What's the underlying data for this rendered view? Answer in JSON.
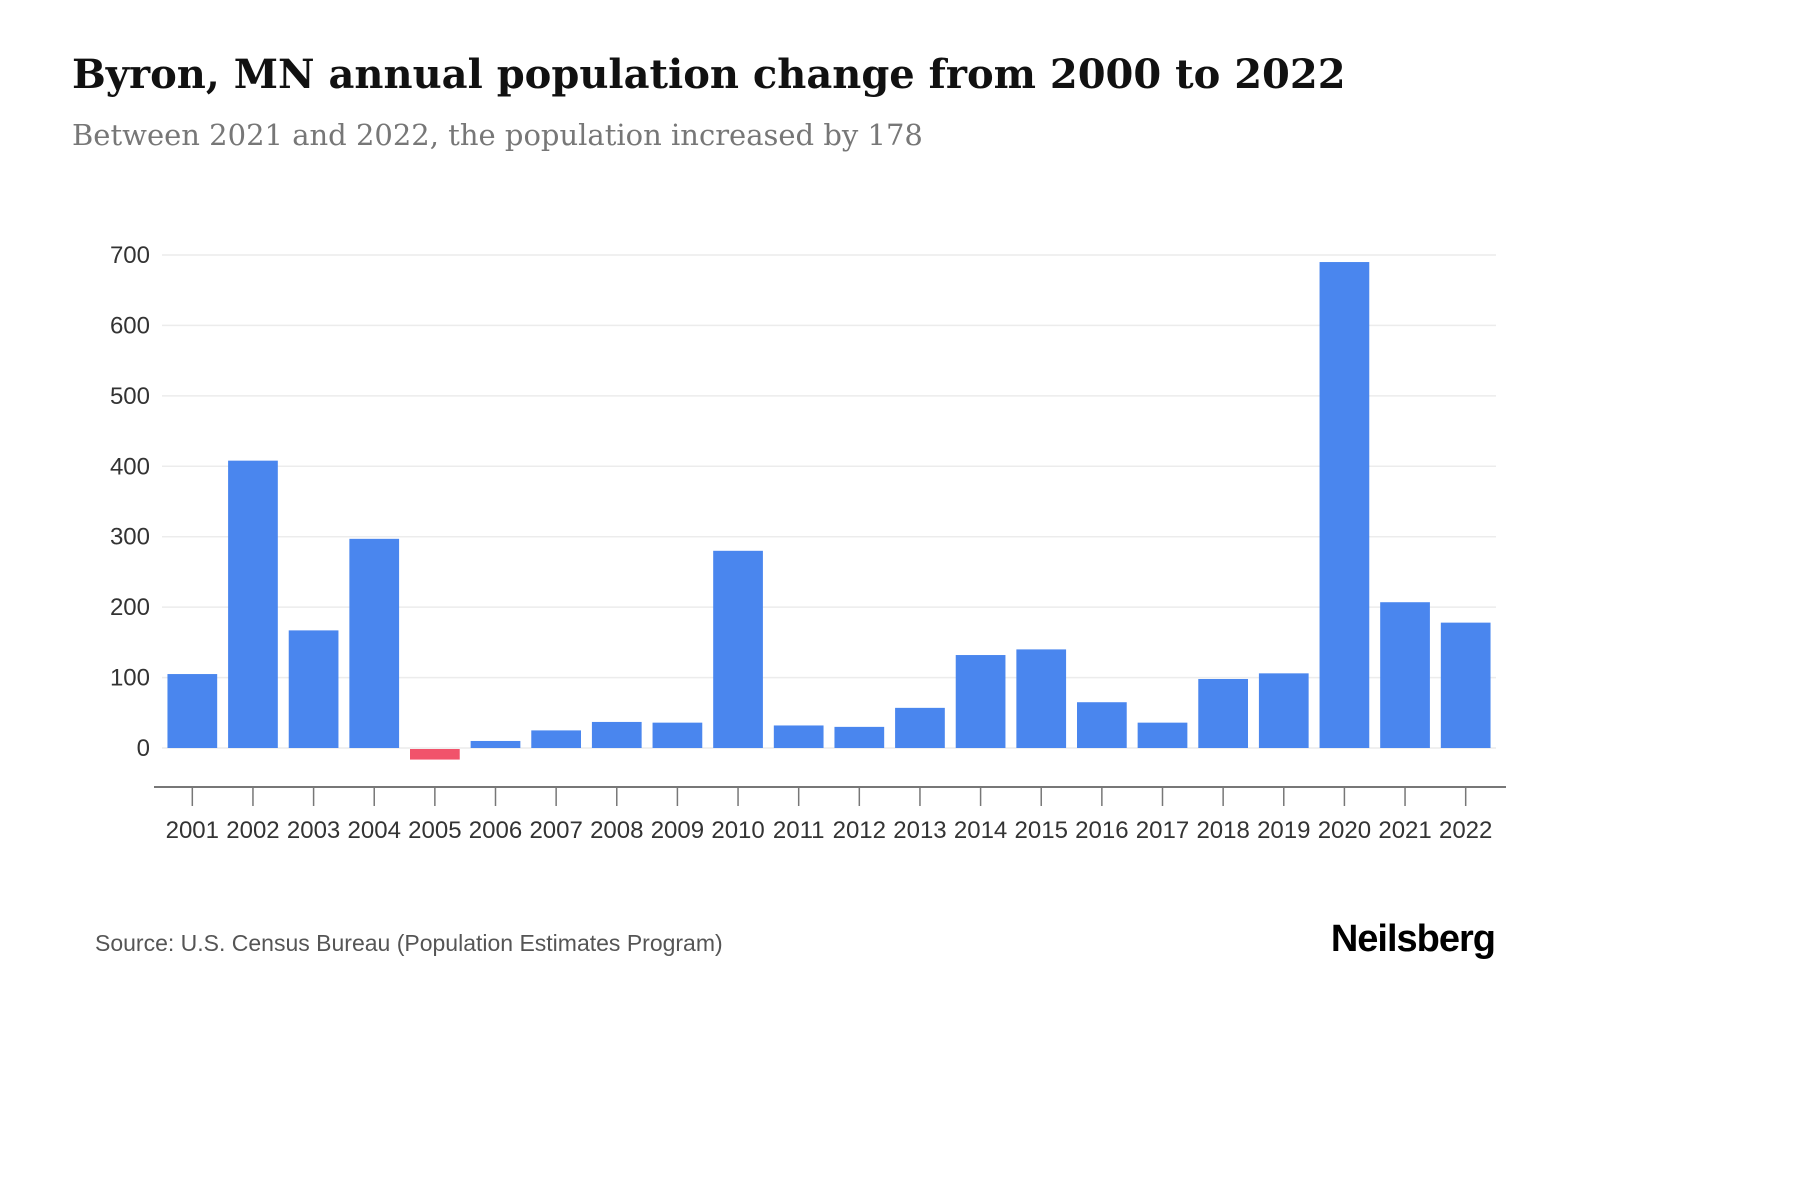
{
  "header": {
    "title": "Byron, MN annual population change from 2000 to 2022",
    "subtitle": "Between 2021 and 2022, the population increased by 178"
  },
  "footer": {
    "source": "Source: U.S. Census Bureau (Population Estimates Program)",
    "brand": "Neilsberg"
  },
  "chart_data": {
    "type": "bar",
    "title": "Byron, MN annual population change from 2000 to 2022",
    "categories": [
      "2001",
      "2002",
      "2003",
      "2004",
      "2005",
      "2006",
      "2007",
      "2008",
      "2009",
      "2010",
      "2011",
      "2012",
      "2013",
      "2014",
      "2015",
      "2016",
      "2017",
      "2018",
      "2019",
      "2020",
      "2021",
      "2022"
    ],
    "values": [
      105,
      408,
      167,
      297,
      -15,
      10,
      25,
      37,
      36,
      280,
      32,
      30,
      57,
      132,
      140,
      65,
      36,
      98,
      106,
      690,
      207,
      178
    ],
    "xlabel": "",
    "ylabel": "",
    "ylim": [
      -30,
      700
    ],
    "yticks": [
      0,
      100,
      200,
      300,
      400,
      500,
      600,
      700
    ],
    "grid": true,
    "legend": "none",
    "colors": {
      "positive_bar": "#4a86ee",
      "negative_bar": "#f1536b",
      "gridline": "#ececec",
      "axis_line": "#777777",
      "tick_label": "#333333"
    }
  }
}
